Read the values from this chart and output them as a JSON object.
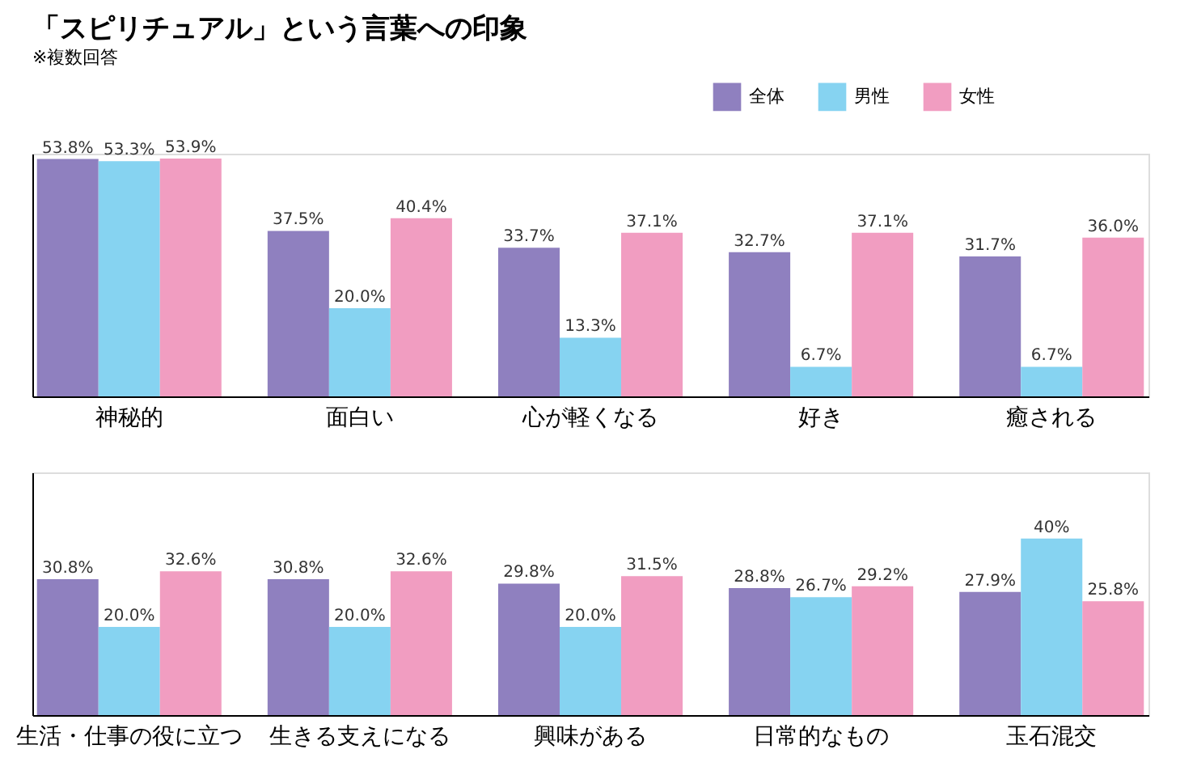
{
  "chart_data": [
    {
      "type": "bar",
      "title": "「スピリチュアル」という言葉への印象",
      "annotations": [
        "※複数回答"
      ],
      "categories": [
        "神秘的",
        "面白い",
        "心が軽くなる",
        "好き",
        "癒される"
      ],
      "legend": "top right",
      "tick_labels": "x",
      "grid": false,
      "series": [
        {
          "name": "全体",
          "color": "#8f80bf",
          "values": [
            53.8,
            37.5,
            33.7,
            32.7,
            31.7
          ],
          "value_labels": [
            "53.8%",
            "37.5%",
            "33.7%",
            "32.7%",
            "31.7%"
          ]
        },
        {
          "name": "男性",
          "color": "#86d3f1",
          "values": [
            53.3,
            20.0,
            13.3,
            6.7,
            6.7
          ],
          "value_labels": [
            "53.3%",
            "20.0%",
            "13.3%",
            "6.7%",
            "6.7%"
          ]
        },
        {
          "name": "女性",
          "color": "#f19dc1",
          "values": [
            53.9,
            40.4,
            37.1,
            37.1,
            36.0
          ],
          "value_labels": [
            "53.9%",
            "40.4%",
            "37.1%",
            "37.1%",
            "36.0%"
          ]
        }
      ]
    },
    {
      "type": "bar",
      "categories": [
        "生活・仕事の役に立つ",
        "生きる支えになる",
        "興味がある",
        "日常的なもの",
        "玉石混交"
      ],
      "tick_labels": "x",
      "grid": false,
      "series": [
        {
          "name": "全体",
          "color": "#8f80bf",
          "values": [
            30.8,
            30.8,
            29.8,
            28.8,
            27.9
          ],
          "value_labels": [
            "30.8%",
            "30.8%",
            "29.8%",
            "28.8%",
            "27.9%"
          ]
        },
        {
          "name": "男性",
          "color": "#86d3f1",
          "values": [
            20.0,
            20.0,
            20.0,
            26.7,
            40
          ],
          "value_labels": [
            "20.0%",
            "20.0%",
            "20.0%",
            "26.7%",
            "40%"
          ]
        },
        {
          "name": "女性",
          "color": "#f19dc1",
          "values": [
            32.6,
            32.6,
            31.5,
            29.2,
            25.8
          ],
          "value_labels": [
            "32.6%",
            "32.6%",
            "31.5%",
            "29.2%",
            "25.8%"
          ]
        }
      ]
    }
  ]
}
